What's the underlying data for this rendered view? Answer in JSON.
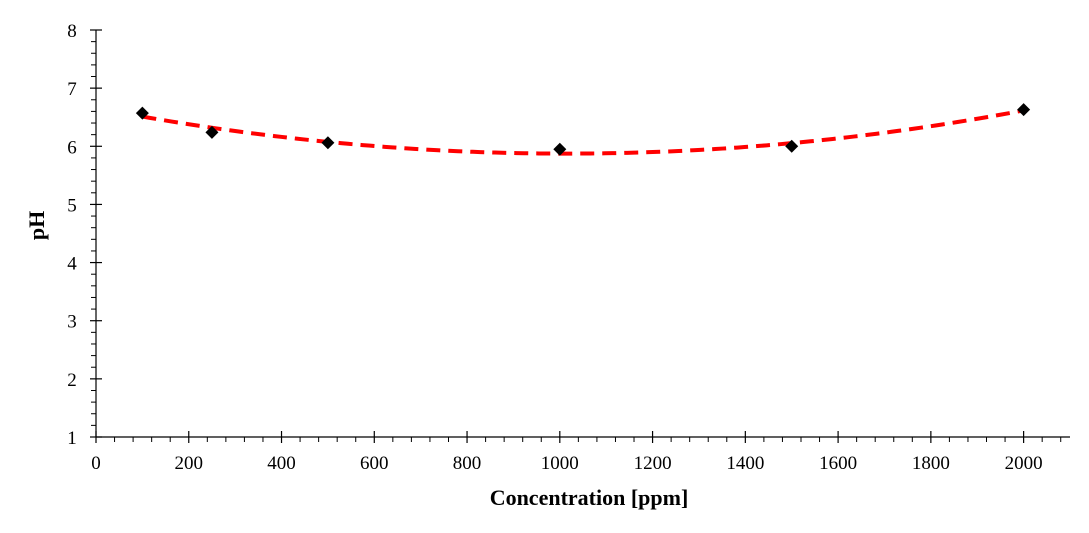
{
  "chart_data": {
    "type": "scatter",
    "xlabel": "Concentration [ppm]",
    "ylabel": "pH",
    "xlim": [
      0,
      2100
    ],
    "ylim": [
      1,
      8
    ],
    "x_ticks": [
      0,
      200,
      400,
      600,
      800,
      1000,
      1200,
      1400,
      1600,
      1800,
      2000
    ],
    "y_ticks": [
      1,
      2,
      3,
      4,
      5,
      6,
      7,
      8
    ],
    "grid": false,
    "legend": "none",
    "series": [
      {
        "marker": "diamond",
        "color": "#000000",
        "points": [
          {
            "x": 100,
            "y": 6.57
          },
          {
            "x": 250,
            "y": 6.24
          },
          {
            "x": 500,
            "y": 6.06
          },
          {
            "x": 1000,
            "y": 5.95
          },
          {
            "x": 1500,
            "y": 6.0
          },
          {
            "x": 2000,
            "y": 6.63
          }
        ]
      }
    ],
    "trendline": {
      "kind": "polynomial-2",
      "style": "dashed",
      "color": "#ff0000",
      "x_range": [
        100,
        2000
      ]
    }
  }
}
